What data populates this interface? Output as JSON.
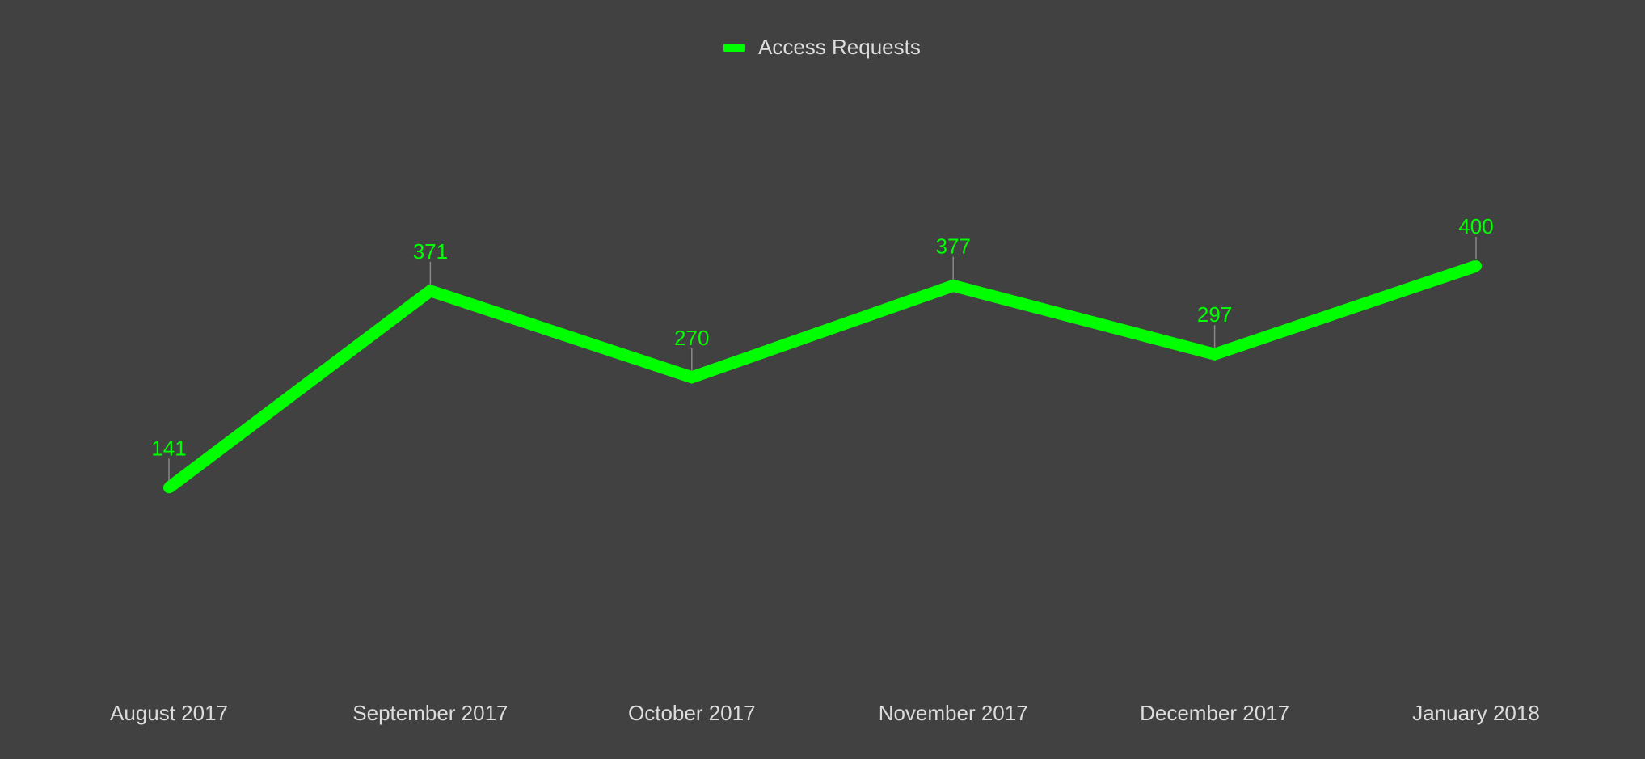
{
  "colors": {
    "background": "#414141",
    "series": "#00ff00",
    "text": "#dcdcdc",
    "label_tick": "#888888"
  },
  "chart_data": {
    "type": "line",
    "categories": [
      "August 2017",
      "September 2017",
      "October 2017",
      "November 2017",
      "December 2017",
      "January 2018"
    ],
    "series": [
      {
        "name": "Access Requests",
        "values": [
          141,
          371,
          270,
          377,
          297,
          400
        ]
      }
    ],
    "data_labels": true,
    "legend_position": "top-center",
    "grid": false,
    "y_axis_visible": false
  }
}
